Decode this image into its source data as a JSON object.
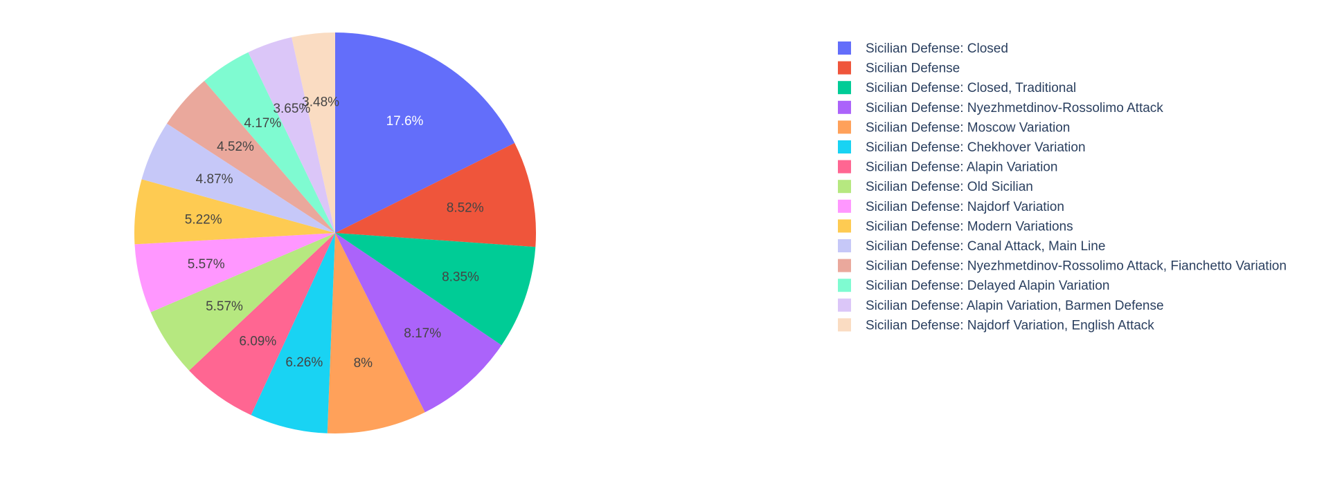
{
  "chart_data": {
    "type": "pie",
    "sort": "descending",
    "direction": "clockwise",
    "start_angle_deg": 0,
    "show_legend": true,
    "legend_position": "right",
    "slices": [
      {
        "label": "Sicilian Defense: Closed",
        "value": 17.6,
        "text": "17.6%",
        "color": "#636efa",
        "text_color": "#ffffff"
      },
      {
        "label": "Sicilian Defense",
        "value": 8.52,
        "text": "8.52%",
        "color": "#EF553B",
        "text_color": "#444444"
      },
      {
        "label": "Sicilian Defense: Closed, Traditional",
        "value": 8.35,
        "text": "8.35%",
        "color": "#00cc96",
        "text_color": "#444444"
      },
      {
        "label": "Sicilian Defense: Nyezhmetdinov-Rossolimo Attack",
        "value": 8.17,
        "text": "8.17%",
        "color": "#ab63fa",
        "text_color": "#444444"
      },
      {
        "label": "Sicilian Defense: Moscow Variation",
        "value": 8.0,
        "text": "8%",
        "color": "#FFA15A",
        "text_color": "#444444"
      },
      {
        "label": "Sicilian Defense: Chekhover Variation",
        "value": 6.26,
        "text": "6.26%",
        "color": "#19d3f3",
        "text_color": "#444444"
      },
      {
        "label": "Sicilian Defense: Alapin Variation",
        "value": 6.09,
        "text": "6.09%",
        "color": "#FF6692",
        "text_color": "#444444"
      },
      {
        "label": "Sicilian Defense: Old Sicilian",
        "value": 5.57,
        "text": "5.57%",
        "color": "#B6E880",
        "text_color": "#444444"
      },
      {
        "label": "Sicilian Defense: Najdorf Variation",
        "value": 5.57,
        "text": "5.57%",
        "color": "#FF97FF",
        "text_color": "#444444"
      },
      {
        "label": "Sicilian Defense: Modern Variations",
        "value": 5.22,
        "text": "5.22%",
        "color": "#FECB52",
        "text_color": "#444444"
      },
      {
        "label": "Sicilian Defense: Canal Attack, Main Line",
        "value": 4.87,
        "text": "4.87%",
        "color": "#c6c8f8",
        "text_color": "#444444"
      },
      {
        "label": "Sicilian Defense: Nyezhmetdinov-Rossolimo Attack, Fianchetto Variation",
        "value": 4.52,
        "text": "4.52%",
        "color": "#eaa89c",
        "text_color": "#444444"
      },
      {
        "label": "Sicilian Defense: Delayed Alapin Variation",
        "value": 4.17,
        "text": "4.17%",
        "color": "#7ffbd1",
        "text_color": "#444444"
      },
      {
        "label": "Sicilian Defense: Alapin Variation, Barmen Defense",
        "value": 3.65,
        "text": "3.65%",
        "color": "#dbc6f8",
        "text_color": "#444444"
      },
      {
        "label": "Sicilian Defense: Najdorf Variation, English Attack",
        "value": 3.48,
        "text": "3.48%",
        "color": "#fadcc2",
        "text_color": "#444444"
      }
    ]
  }
}
